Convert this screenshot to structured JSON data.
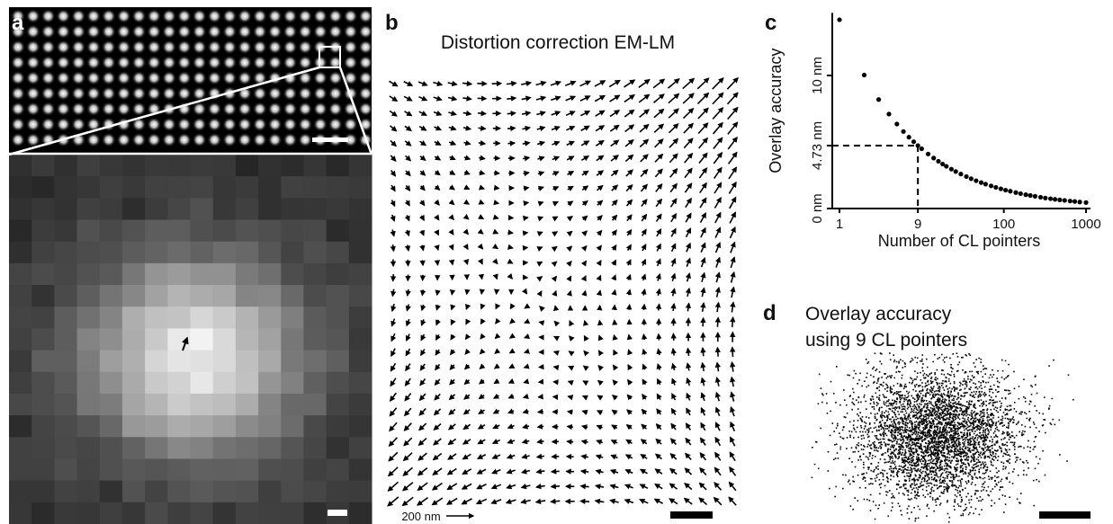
{
  "panel_labels": [
    "a",
    "b",
    "c",
    "d"
  ],
  "panel_b": {
    "title": "Distortion correction EM-LM",
    "scale_label": "200 nm"
  },
  "chart_data": {
    "type": "scatter",
    "x_label": "Number of CL pointers",
    "y_label": "Overlay accuracy",
    "x": [
      1,
      2,
      3,
      4,
      5,
      6,
      7,
      8,
      9,
      10,
      12,
      14,
      16,
      18,
      20,
      23,
      26,
      30,
      35,
      40,
      46,
      53,
      60,
      70,
      80,
      92,
      105,
      120,
      140,
      160,
      185,
      210,
      240,
      280,
      320,
      370,
      420,
      480,
      550,
      640,
      730,
      840,
      1000
    ],
    "values": [
      14.19,
      10.03,
      8.19,
      7.1,
      6.35,
      5.79,
      5.36,
      5.02,
      4.73,
      4.49,
      4.1,
      3.79,
      3.55,
      3.34,
      3.17,
      2.96,
      2.78,
      2.59,
      2.4,
      2.24,
      2.09,
      1.95,
      1.83,
      1.7,
      1.59,
      1.48,
      1.38,
      1.3,
      1.2,
      1.12,
      1.04,
      0.98,
      0.92,
      0.85,
      0.79,
      0.74,
      0.69,
      0.65,
      0.61,
      0.56,
      0.53,
      0.49,
      0.45
    ],
    "color": "#000000",
    "xscale": "log",
    "xlim": [
      1,
      1000
    ],
    "ylim": [
      0,
      14.7
    ],
    "xticks": [
      1,
      9,
      100,
      1000
    ],
    "yticks": [
      {
        "value": 0,
        "label": "0 nm"
      },
      {
        "value": 4.73,
        "label": "4.73 nm"
      },
      {
        "value": 10,
        "label": "10 nm"
      }
    ]
  },
  "panel_d": {
    "title_lines": [
      "Overlay accuracy",
      "using 9 CL pointers"
    ]
  }
}
